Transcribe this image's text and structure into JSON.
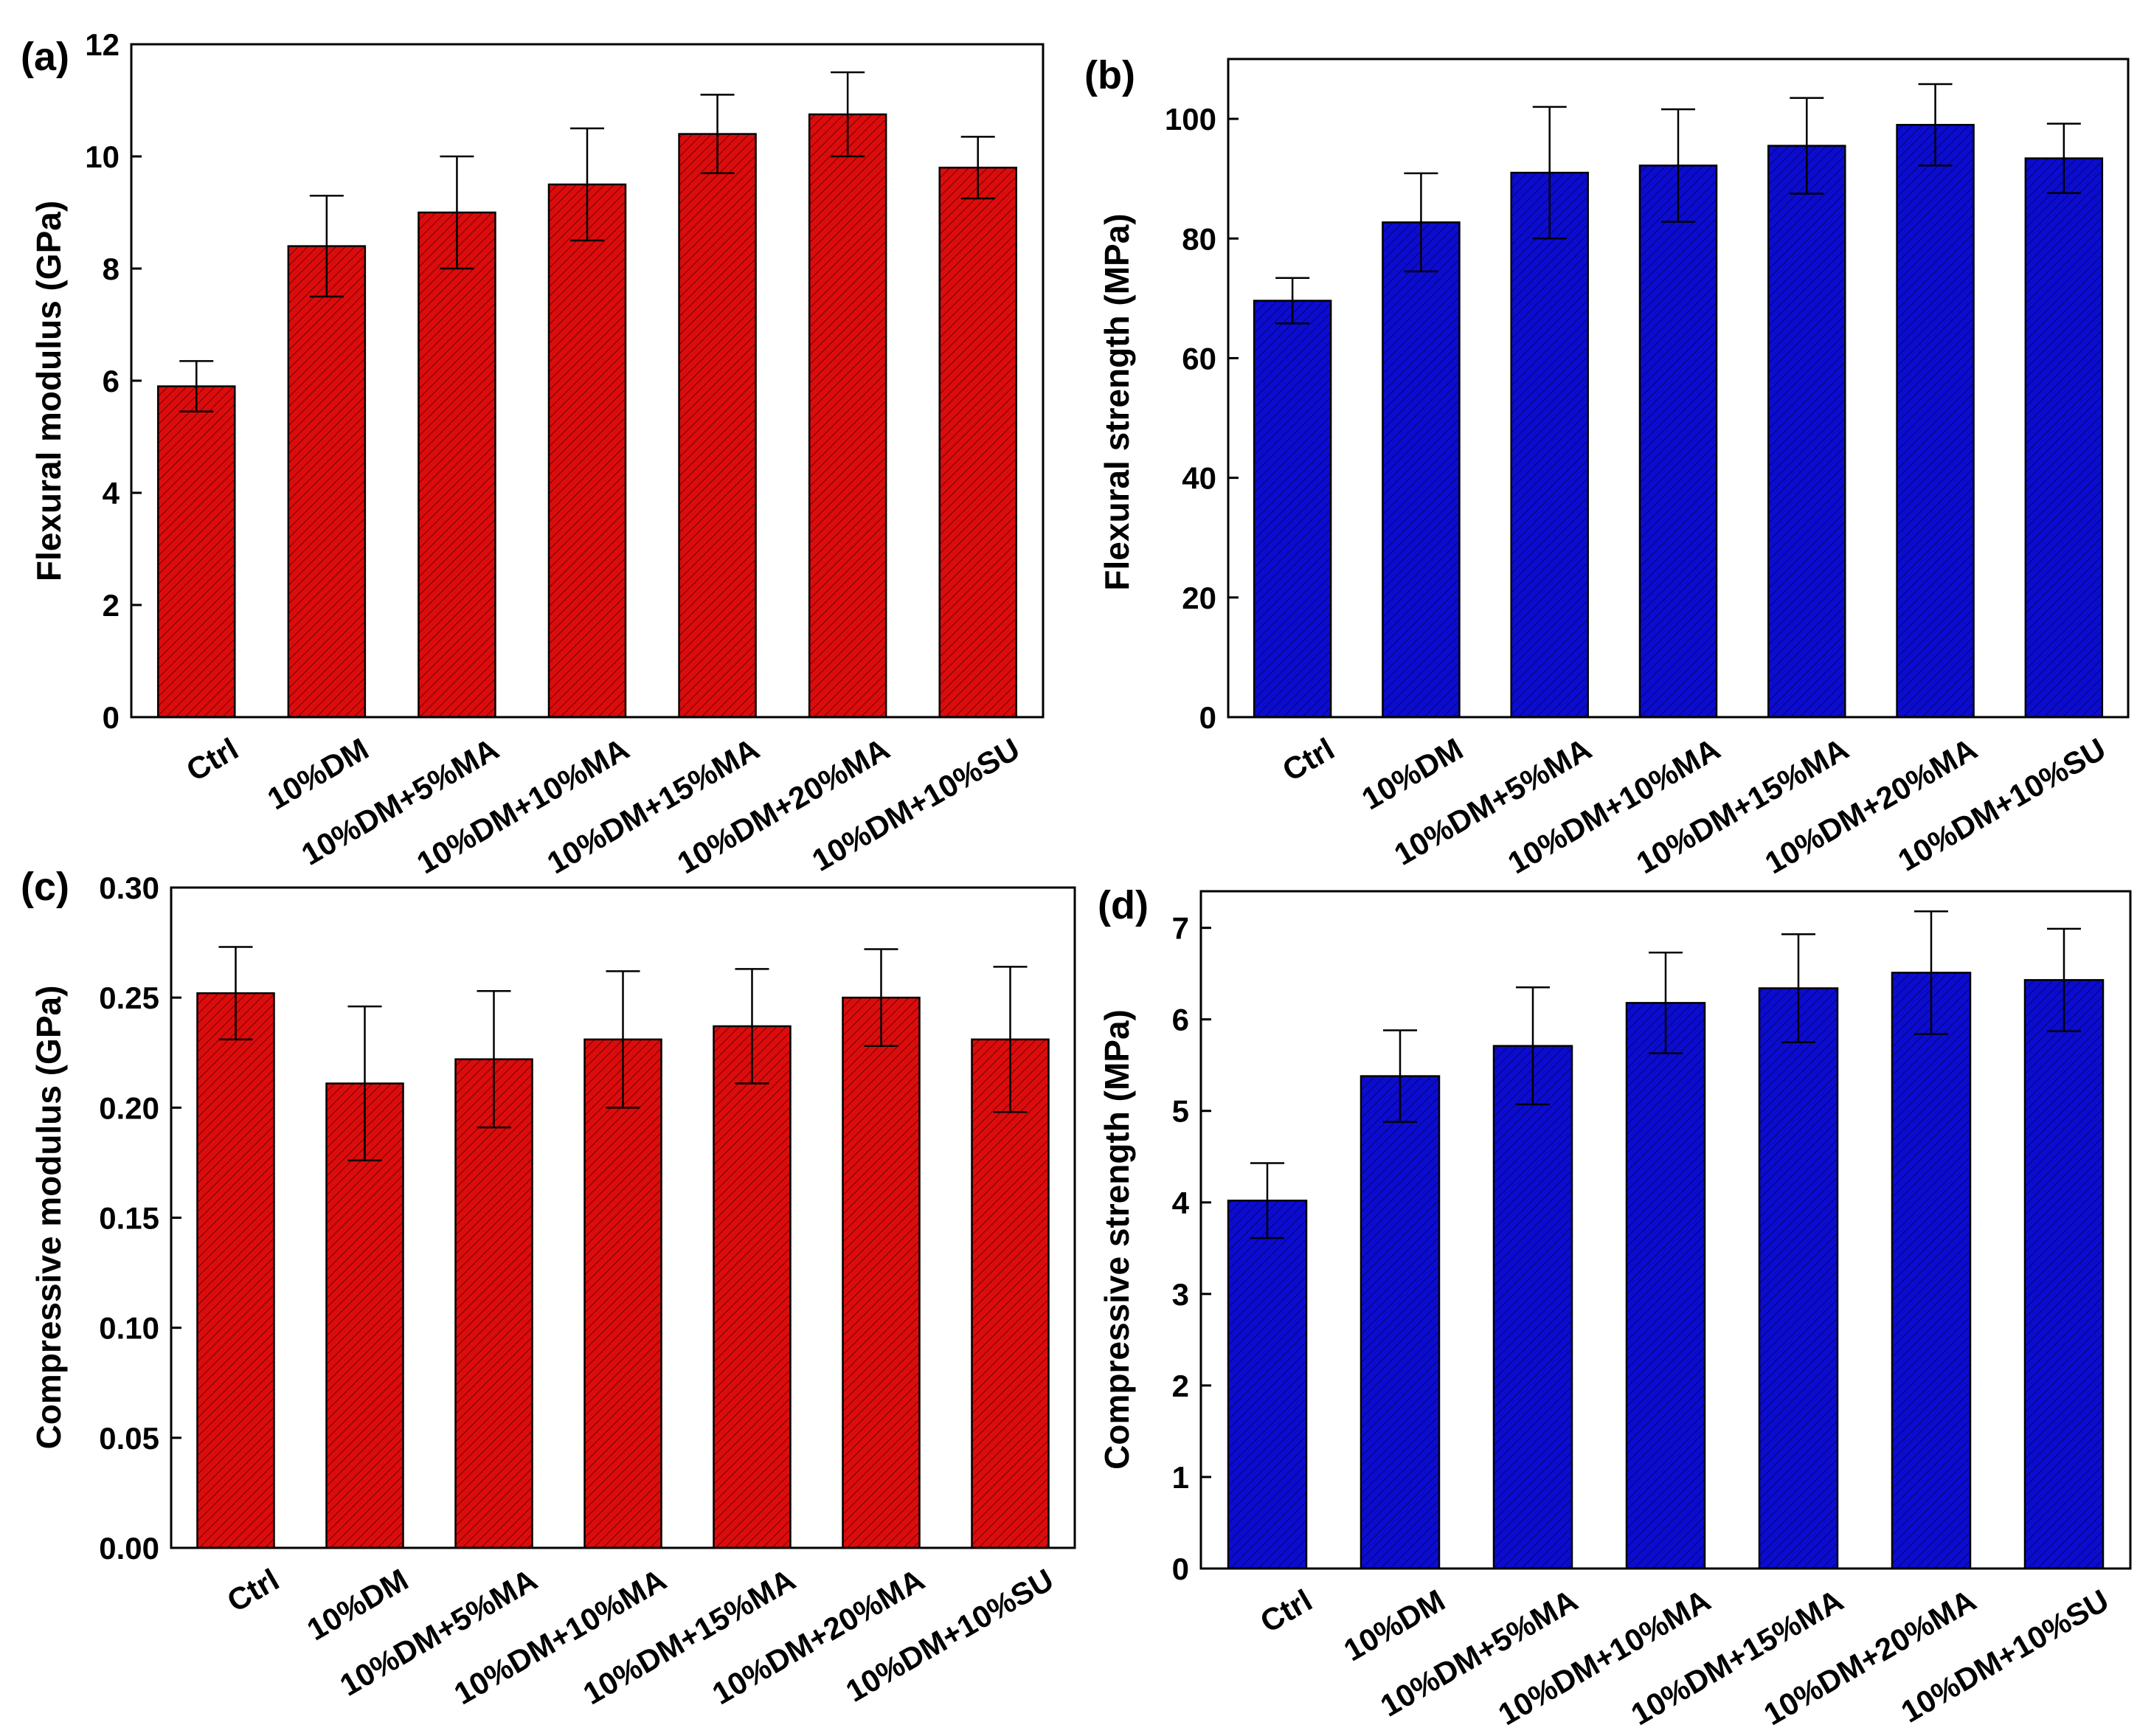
{
  "colors": {
    "red": "#dc0c0c",
    "blue": "#0c0cd0"
  },
  "chart_data": [
    {
      "id": "a",
      "panel_label": "(a)",
      "type": "bar",
      "color": "red",
      "ylabel": "Flexural modulus (GPa)",
      "ylim": [
        0,
        12
      ],
      "yticks": [
        0,
        2,
        4,
        6,
        8,
        10,
        12
      ],
      "categories": [
        "Ctrl",
        "10%DM",
        "10%DM+5%MA",
        "10%DM+10%MA",
        "10%DM+15%MA",
        "10%DM+20%MA",
        "10%DM+10%SU"
      ],
      "values": [
        5.9,
        8.4,
        9.0,
        9.5,
        10.4,
        10.75,
        9.8
      ],
      "errors": [
        0.45,
        0.9,
        1.0,
        1.0,
        0.7,
        0.75,
        0.55
      ]
    },
    {
      "id": "b",
      "panel_label": "(b)",
      "type": "bar",
      "color": "blue",
      "ylabel": "Flexural strength (MPa)",
      "ylim": [
        0,
        110
      ],
      "yticks": [
        0,
        20,
        40,
        60,
        80,
        100
      ],
      "categories": [
        "Ctrl",
        "10%DM",
        "10%DM+5%MA",
        "10%DM+10%MA",
        "10%DM+15%MA",
        "10%DM+20%MA",
        "10%DM+10%SU"
      ],
      "values": [
        69.6,
        82.7,
        91.0,
        92.2,
        95.5,
        99.0,
        93.4
      ],
      "errors": [
        3.8,
        8.2,
        11.0,
        9.4,
        8.0,
        6.8,
        5.8
      ]
    },
    {
      "id": "c",
      "panel_label": "(c)",
      "type": "bar",
      "color": "red",
      "ylabel": "Compressive modulus (GPa)",
      "ylim": [
        0,
        0.3
      ],
      "yticks": [
        "0.00",
        "0.05",
        "0.10",
        "0.15",
        "0.20",
        "0.25",
        "0.30"
      ],
      "categories": [
        "Ctrl",
        "10%DM",
        "10%DM+5%MA",
        "10%DM+10%MA",
        "10%DM+15%MA",
        "10%DM+20%MA",
        "10%DM+10%SU"
      ],
      "values": [
        0.252,
        0.211,
        0.222,
        0.231,
        0.237,
        0.25,
        0.231
      ],
      "errors": [
        0.021,
        0.035,
        0.031,
        0.031,
        0.026,
        0.022,
        0.033
      ]
    },
    {
      "id": "d",
      "panel_label": "(d)",
      "type": "bar",
      "color": "blue",
      "ylabel": "Compressive strength (MPa)",
      "ylim": [
        0,
        7.4
      ],
      "yticks": [
        0,
        1,
        2,
        3,
        4,
        5,
        6,
        7
      ],
      "categories": [
        "Ctrl",
        "10%DM",
        "10%DM+5%MA",
        "10%DM+10%MA",
        "10%DM+15%MA",
        "10%DM+20%MA",
        "10%DM+10%SU"
      ],
      "values": [
        4.02,
        5.38,
        5.71,
        6.18,
        6.34,
        6.51,
        6.43
      ],
      "errors": [
        0.41,
        0.5,
        0.64,
        0.55,
        0.59,
        0.67,
        0.56
      ]
    }
  ]
}
